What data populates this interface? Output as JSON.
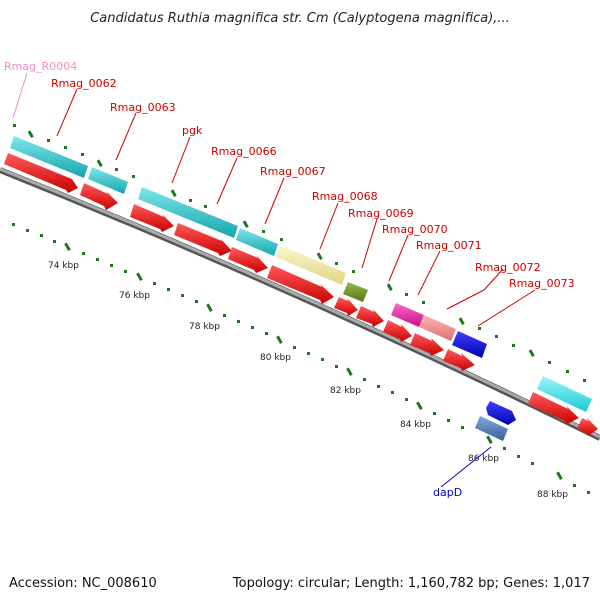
{
  "title": "Candidatus Ruthia magnifica str. Cm (Calyptogena magnifica),...",
  "footer": {
    "accession": "Accession: NC_008610",
    "topology": "Topology: circular; Length: 1,160,782 bp; Genes: 1,017"
  },
  "scale_labels": [
    "74 kbp",
    "76 kbp",
    "78 kbp",
    "80 kbp",
    "82 kbp",
    "84 kbp",
    "86 kbp",
    "88 kbp"
  ],
  "gene_labels": [
    {
      "name": "rna-label-rmag-r0004",
      "text": "Rmag_R0004",
      "color": "#f08cc0"
    },
    {
      "name": "gene-label-rmag-0062",
      "text": "Rmag_0062",
      "color": "#cc0000"
    },
    {
      "name": "gene-label-rmag-0063",
      "text": "Rmag_0063",
      "color": "#cc0000"
    },
    {
      "name": "gene-label-pgk",
      "text": "pgk",
      "color": "#cc0000"
    },
    {
      "name": "gene-label-rmag-0066",
      "text": "Rmag_0066",
      "color": "#cc0000"
    },
    {
      "name": "gene-label-rmag-0067",
      "text": "Rmag_0067",
      "color": "#cc0000"
    },
    {
      "name": "gene-label-rmag-0068",
      "text": "Rmag_0068",
      "color": "#cc0000"
    },
    {
      "name": "gene-label-rmag-0069",
      "text": "Rmag_0069",
      "color": "#cc0000"
    },
    {
      "name": "gene-label-rmag-0070",
      "text": "Rmag_0070",
      "color": "#cc0000"
    },
    {
      "name": "gene-label-rmag-0071",
      "text": "Rmag_0071",
      "color": "#cc0000"
    },
    {
      "name": "gene-label-rmag-0072",
      "text": "Rmag_0072",
      "color": "#cc0000"
    },
    {
      "name": "gene-label-rmag-0073",
      "text": "Rmag_0073",
      "color": "#cc0000"
    },
    {
      "name": "gene-label-dapd",
      "text": "dapD",
      "color": "#0000cc"
    }
  ],
  "colors": {
    "cds_forward": "#ee0000",
    "cog_cyan": "#20c4c8",
    "cog_khaki": "#f0e6a0",
    "cog_olive": "#6e8c1e",
    "cog_magenta": "#ee2aa8",
    "cog_salmon": "#f08c8c",
    "cog_blue": "#0000dd",
    "cog_steel": "#4a7ab0",
    "cog_aqua": "#22e6ee",
    "backbone": "#888888",
    "tick": "#1a7a1a"
  }
}
